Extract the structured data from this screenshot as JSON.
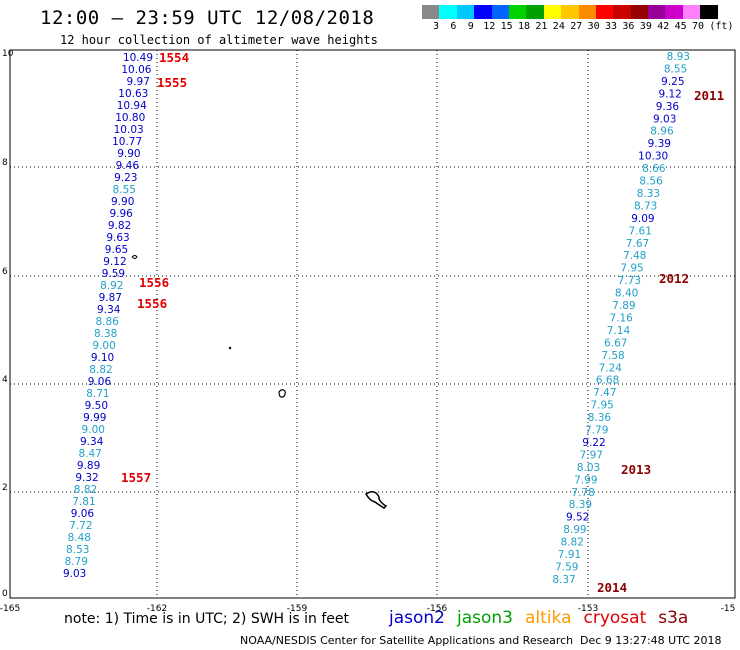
{
  "header": {
    "title": "12:00 – 23:59 UTC 12/08/2018",
    "subtitle": "12 hour collection of altimeter wave heights"
  },
  "color_scale": {
    "colors": [
      "#888888",
      "#00ffff",
      "#00c8ff",
      "#0000ff",
      "#0064ff",
      "#00d200",
      "#00a000",
      "#ffff00",
      "#ffc800",
      "#ff8c00",
      "#ff0000",
      "#c80000",
      "#960000",
      "#960096",
      "#cc00cc",
      "#ff80ff",
      "#000000"
    ],
    "labels": [
      "3",
      "6",
      "9",
      "12",
      "15",
      "18",
      "21",
      "24",
      "27",
      "30",
      "33",
      "36",
      "39",
      "42",
      "45",
      "70",
      "(ft)"
    ]
  },
  "axes": {
    "x_ticks": [
      "-165",
      "-162",
      "-159",
      "-156",
      "-153",
      "-15"
    ],
    "y_ticks": [
      "10",
      "8",
      "6",
      "4",
      "2",
      "0"
    ]
  },
  "colors": {
    "jason2": "#0000cc",
    "jason3_light": "#22a0c8",
    "pass_label": "#e00000",
    "pass_label_dark": "#8b0000"
  },
  "tracks": [
    {
      "pass": "1554-1557",
      "points": [
        {
          "v": "10.49",
          "c": "d"
        },
        {
          "v": "10.06",
          "c": "d"
        },
        {
          "v": "9.97",
          "c": "d"
        },
        {
          "v": "10.63",
          "c": "d"
        },
        {
          "v": "10.94",
          "c": "d"
        },
        {
          "v": "10.80",
          "c": "d"
        },
        {
          "v": "10.03",
          "c": "d"
        },
        {
          "v": "10.77",
          "c": "d"
        },
        {
          "v": "9.90",
          "c": "d"
        },
        {
          "v": "9.46",
          "c": "d"
        },
        {
          "v": "9.23",
          "c": "d"
        },
        {
          "v": "8.55",
          "c": "l"
        },
        {
          "v": "9.90",
          "c": "d"
        },
        {
          "v": "9.96",
          "c": "d"
        },
        {
          "v": "9.82",
          "c": "d"
        },
        {
          "v": "9.63",
          "c": "d"
        },
        {
          "v": "9.65",
          "c": "d"
        },
        {
          "v": "9.12",
          "c": "d"
        },
        {
          "v": "9.59",
          "c": "d"
        },
        {
          "v": "8.92",
          "c": "l"
        },
        {
          "v": "9.87",
          "c": "d"
        },
        {
          "v": "9.34",
          "c": "d"
        },
        {
          "v": "8.86",
          "c": "l"
        },
        {
          "v": "8.38",
          "c": "l"
        },
        {
          "v": "9.00",
          "c": "l"
        },
        {
          "v": "9.10",
          "c": "d"
        },
        {
          "v": "8.82",
          "c": "l"
        },
        {
          "v": "9.06",
          "c": "d"
        },
        {
          "v": "8.71",
          "c": "l"
        },
        {
          "v": "9.50",
          "c": "d"
        },
        {
          "v": "9.99",
          "c": "d"
        },
        {
          "v": "9.00",
          "c": "l"
        },
        {
          "v": "9.34",
          "c": "d"
        },
        {
          "v": "8.47",
          "c": "l"
        },
        {
          "v": "9.89",
          "c": "d"
        },
        {
          "v": "9.32",
          "c": "d"
        },
        {
          "v": "8.82",
          "c": "l"
        },
        {
          "v": "7.81",
          "c": "l"
        },
        {
          "v": "9.06",
          "c": "d"
        },
        {
          "v": "7.72",
          "c": "l"
        },
        {
          "v": "8.48",
          "c": "l"
        },
        {
          "v": "8.53",
          "c": "l"
        },
        {
          "v": "8.79",
          "c": "l"
        },
        {
          "v": "9.03",
          "c": "d"
        }
      ]
    },
    {
      "pass": "2011-2014",
      "points": [
        {
          "v": "8.93",
          "c": "l"
        },
        {
          "v": "8.55",
          "c": "l"
        },
        {
          "v": "9.25",
          "c": "d"
        },
        {
          "v": "9.12",
          "c": "d"
        },
        {
          "v": "9.36",
          "c": "d"
        },
        {
          "v": "9.03",
          "c": "d"
        },
        {
          "v": "8.96",
          "c": "l"
        },
        {
          "v": "9.39",
          "c": "d"
        },
        {
          "v": "10.30",
          "c": "d"
        },
        {
          "v": "8.66",
          "c": "l"
        },
        {
          "v": "8.56",
          "c": "l"
        },
        {
          "v": "8.33",
          "c": "l"
        },
        {
          "v": "8.73",
          "c": "l"
        },
        {
          "v": "9.09",
          "c": "d"
        },
        {
          "v": "7.61",
          "c": "l"
        },
        {
          "v": "7.67",
          "c": "l"
        },
        {
          "v": "7.48",
          "c": "l"
        },
        {
          "v": "7.95",
          "c": "l"
        },
        {
          "v": "7.73",
          "c": "l"
        },
        {
          "v": "8.40",
          "c": "l"
        },
        {
          "v": "7.89",
          "c": "l"
        },
        {
          "v": "7.16",
          "c": "l"
        },
        {
          "v": "7.14",
          "c": "l"
        },
        {
          "v": "6.67",
          "c": "l"
        },
        {
          "v": "7.58",
          "c": "l"
        },
        {
          "v": "7.24",
          "c": "l"
        },
        {
          "v": "6.68",
          "c": "l"
        },
        {
          "v": "7.47",
          "c": "l"
        },
        {
          "v": "7.95",
          "c": "l"
        },
        {
          "v": "8.36",
          "c": "l"
        },
        {
          "v": "7.79",
          "c": "l"
        },
        {
          "v": "9.22",
          "c": "d"
        },
        {
          "v": "7.97",
          "c": "l"
        },
        {
          "v": "8.03",
          "c": "l"
        },
        {
          "v": "7.99",
          "c": "l"
        },
        {
          "v": "7.78",
          "c": "l"
        },
        {
          "v": "8.39",
          "c": "l"
        },
        {
          "v": "9.52",
          "c": "d"
        },
        {
          "v": "8.99",
          "c": "l"
        },
        {
          "v": "8.82",
          "c": "l"
        },
        {
          "v": "7.91",
          "c": "l"
        },
        {
          "v": "7.59",
          "c": "l"
        },
        {
          "v": "8.37",
          "c": "l"
        }
      ]
    }
  ],
  "pass_labels": [
    "1554",
    "1555",
    "1556",
    "1556",
    "1557",
    "2011",
    "2012",
    "2013",
    "2014"
  ],
  "note": "note:  1) Time is in UTC;  2) SWH is in feet",
  "satellites": [
    {
      "name": "jason2",
      "color": "#0000cc"
    },
    {
      "name": "jason3",
      "color": "#00a000"
    },
    {
      "name": "altika",
      "color": "#ff9900"
    },
    {
      "name": "cryosat",
      "color": "#e00000"
    },
    {
      "name": "s3a",
      "color": "#8b0000"
    }
  ],
  "footer": {
    "credit": "NOAA/NESDIS Center for Satellite Applications and Research",
    "timestamp": "Dec  9 13:27:48 UTC 2018"
  }
}
